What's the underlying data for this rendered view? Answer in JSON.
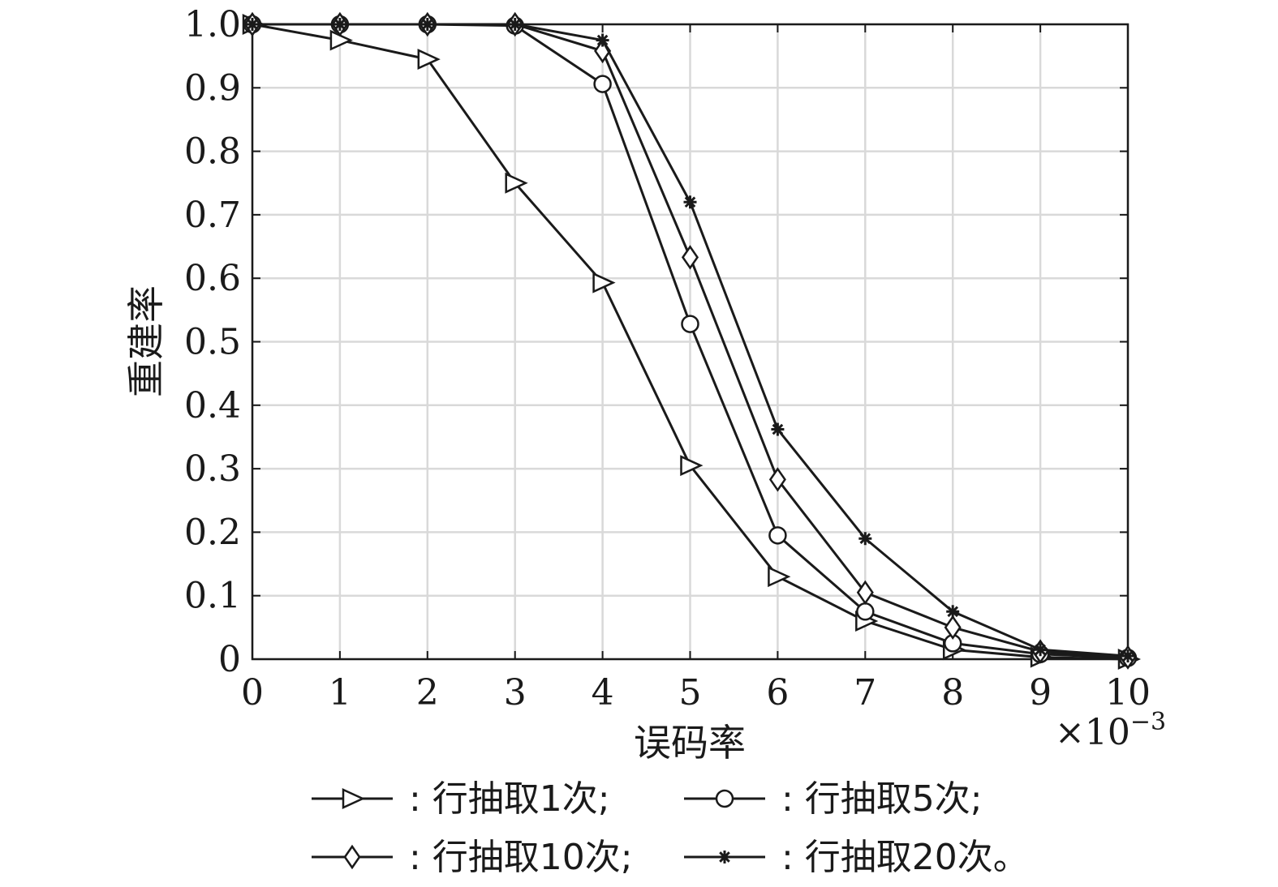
{
  "chart_data": {
    "type": "line",
    "xlabel": "误码率",
    "ylabel": "重建率",
    "x_multiplier": "×10",
    "x_multiplier_exp": "−3",
    "xlim": [
      0,
      10
    ],
    "ylim": [
      0,
      1.0
    ],
    "x_ticks": [
      "0",
      "1",
      "2",
      "3",
      "4",
      "5",
      "6",
      "7",
      "8",
      "9",
      "10"
    ],
    "y_ticks": [
      "0",
      "0.1",
      "0.2",
      "0.3",
      "0.4",
      "0.5",
      "0.6",
      "0.7",
      "0.8",
      "0.9",
      "1.0"
    ],
    "grid": true,
    "legend_position": "bottom",
    "x": [
      0,
      1,
      2,
      3,
      4,
      5,
      6,
      7,
      8,
      9,
      10
    ],
    "series": [
      {
        "name": ": 行抽取1次;",
        "marker": "triangle-right",
        "values": [
          1.0,
          0.975,
          0.945,
          0.75,
          0.593,
          0.305,
          0.13,
          0.06,
          0.015,
          0.003,
          0.0
        ]
      },
      {
        "name": ": 行抽取5次;",
        "marker": "circle",
        "values": [
          1.0,
          1.0,
          1.0,
          0.998,
          0.906,
          0.528,
          0.195,
          0.075,
          0.025,
          0.008,
          0.002
        ]
      },
      {
        "name": ": 行抽取10次;",
        "marker": "diamond",
        "values": [
          1.0,
          1.0,
          1.0,
          1.0,
          0.958,
          0.633,
          0.283,
          0.105,
          0.05,
          0.012,
          0.003
        ]
      },
      {
        "name": ": 行抽取20次。",
        "marker": "star",
        "values": [
          1.0,
          1.0,
          1.0,
          1.0,
          0.975,
          0.72,
          0.362,
          0.19,
          0.075,
          0.015,
          0.005
        ]
      }
    ]
  }
}
